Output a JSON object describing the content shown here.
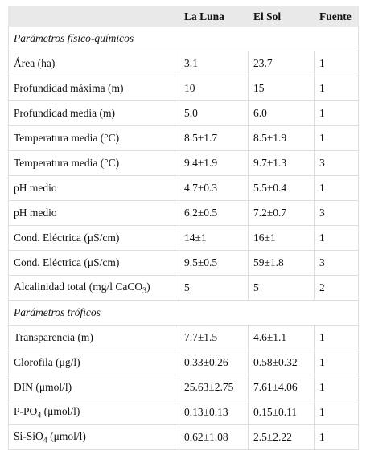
{
  "table": {
    "header": [
      "La Luna",
      "El Sol",
      "Fuente"
    ],
    "sections": [
      {
        "title": "Parámetros físico-químicos",
        "rows": [
          [
            "Área (ha)",
            "3.1",
            "23.7",
            "1"
          ],
          [
            "Profundidad máxima (m)",
            "10",
            "15",
            "1"
          ],
          [
            "Profundidad media (m)",
            "5.0",
            "6.0",
            "1"
          ],
          [
            "Temperatura media (°C)",
            "8.5±1.7",
            "8.5±1.9",
            "1"
          ],
          [
            "Temperatura media (°C)",
            "9.4±1.9",
            "9.7±1.3",
            "3"
          ],
          [
            "pH medio",
            "4.7±0.3",
            "5.5±0.4",
            "1"
          ],
          [
            "pH medio",
            "6.2±0.5",
            "7.2±0.7",
            "3"
          ],
          [
            "Cond. Eléctrica (μS/cm)",
            "14±1",
            "16±1",
            "1"
          ],
          [
            "Cond. Eléctrica (μS/cm)",
            "9.5±0.5",
            "59±1.8",
            "3"
          ],
          [
            {
              "text": "Alcalinidad total (mg/l CaCO",
              "sub": "3",
              "after": ")"
            },
            "5",
            "5",
            "2"
          ]
        ]
      },
      {
        "title": "Parámetros tróficos",
        "rows": [
          [
            "Transparencia (m)",
            "7.7±1.5",
            "4.6±1.1",
            "1"
          ],
          [
            "Clorofila (μg/l)",
            "0.33±0.26",
            "0.58±0.32",
            "1"
          ],
          [
            "DIN (μmol/l)",
            "25.63±2.75",
            "7.61±4.06",
            "1"
          ],
          [
            {
              "text": "P-PO",
              "sub": "4",
              "after": " (μmol/l)"
            },
            "0.13±0.13",
            "0.15±0.11",
            "1"
          ],
          [
            {
              "text": "Si-SiO",
              "sub": "4",
              "after": " (μmol/l)"
            },
            "0.62±1.08",
            "2.5±2.22",
            "1"
          ]
        ]
      }
    ]
  }
}
